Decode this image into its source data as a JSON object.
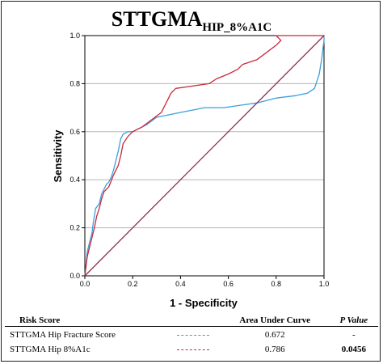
{
  "chart_data": {
    "type": "line",
    "title_main": "STTGMA",
    "title_sub": "HIP_8%A1C",
    "xlabel": "1 - Specificity",
    "ylabel": "Sensitivity",
    "xlim": [
      0.0,
      1.0
    ],
    "ylim": [
      0.0,
      1.0
    ],
    "xticks": [
      "0.0",
      "0.2",
      "0.4",
      "0.6",
      "0.8",
      "1.0"
    ],
    "yticks": [
      "0.0",
      "0.2",
      "0.4",
      "0.6",
      "0.8",
      "1.0"
    ],
    "grid": "horizontal",
    "series": [
      {
        "name": "STTGMA Hip Fracture Score",
        "color": "#3b9fdc",
        "points": [
          [
            0,
            0
          ],
          [
            0.005,
            0.05
          ],
          [
            0.01,
            0.1
          ],
          [
            0.02,
            0.14
          ],
          [
            0.03,
            0.18
          ],
          [
            0.035,
            0.22
          ],
          [
            0.045,
            0.28
          ],
          [
            0.06,
            0.3
          ],
          [
            0.07,
            0.34
          ],
          [
            0.08,
            0.36
          ],
          [
            0.09,
            0.38
          ],
          [
            0.1,
            0.39
          ],
          [
            0.11,
            0.41
          ],
          [
            0.12,
            0.44
          ],
          [
            0.13,
            0.48
          ],
          [
            0.14,
            0.52
          ],
          [
            0.15,
            0.57
          ],
          [
            0.16,
            0.59
          ],
          [
            0.18,
            0.6
          ],
          [
            0.2,
            0.6
          ],
          [
            0.22,
            0.61
          ],
          [
            0.26,
            0.63
          ],
          [
            0.3,
            0.66
          ],
          [
            0.35,
            0.67
          ],
          [
            0.4,
            0.68
          ],
          [
            0.45,
            0.69
          ],
          [
            0.5,
            0.7
          ],
          [
            0.58,
            0.7
          ],
          [
            0.65,
            0.71
          ],
          [
            0.72,
            0.72
          ],
          [
            0.8,
            0.74
          ],
          [
            0.88,
            0.75
          ],
          [
            0.93,
            0.76
          ],
          [
            0.96,
            0.78
          ],
          [
            0.98,
            0.84
          ],
          [
            0.99,
            0.9
          ],
          [
            1,
            0.98
          ],
          [
            1,
            1
          ]
        ]
      },
      {
        "name": "STTGMA Hip 8%A1c",
        "color": "#c8283c",
        "points": [
          [
            0,
            0
          ],
          [
            0.005,
            0.04
          ],
          [
            0.01,
            0.08
          ],
          [
            0.02,
            0.12
          ],
          [
            0.03,
            0.16
          ],
          [
            0.04,
            0.2
          ],
          [
            0.05,
            0.25
          ],
          [
            0.06,
            0.28
          ],
          [
            0.07,
            0.32
          ],
          [
            0.08,
            0.35
          ],
          [
            0.1,
            0.37
          ],
          [
            0.12,
            0.42
          ],
          [
            0.14,
            0.46
          ],
          [
            0.15,
            0.5
          ],
          [
            0.16,
            0.55
          ],
          [
            0.18,
            0.58
          ],
          [
            0.2,
            0.6
          ],
          [
            0.24,
            0.62
          ],
          [
            0.28,
            0.65
          ],
          [
            0.32,
            0.68
          ],
          [
            0.34,
            0.72
          ],
          [
            0.36,
            0.76
          ],
          [
            0.38,
            0.78
          ],
          [
            0.45,
            0.79
          ],
          [
            0.52,
            0.8
          ],
          [
            0.55,
            0.82
          ],
          [
            0.6,
            0.84
          ],
          [
            0.64,
            0.86
          ],
          [
            0.66,
            0.88
          ],
          [
            0.72,
            0.9
          ],
          [
            0.76,
            0.93
          ],
          [
            0.8,
            0.96
          ],
          [
            0.82,
            0.98
          ],
          [
            0.8,
            1.0
          ],
          [
            0.9,
            1.0
          ],
          [
            1,
            1
          ]
        ]
      },
      {
        "name": "Reference Line",
        "color": "#8b2e52",
        "points": [
          [
            0,
            0
          ],
          [
            1,
            1
          ]
        ]
      }
    ]
  },
  "legend_table": {
    "headers": {
      "risk_score": "Risk Score",
      "auc": "Area Under Curve",
      "pvalue": "P Value"
    },
    "rows": [
      {
        "name": "STTGMA Hip Fracture Score",
        "auc": "0.672",
        "pvalue": "-",
        "color": "#3b9fdc"
      },
      {
        "name": "STTGMA Hip 8%A1c",
        "auc": "0.786",
        "pvalue": "0.0456",
        "color": "#c8283c"
      }
    ]
  }
}
